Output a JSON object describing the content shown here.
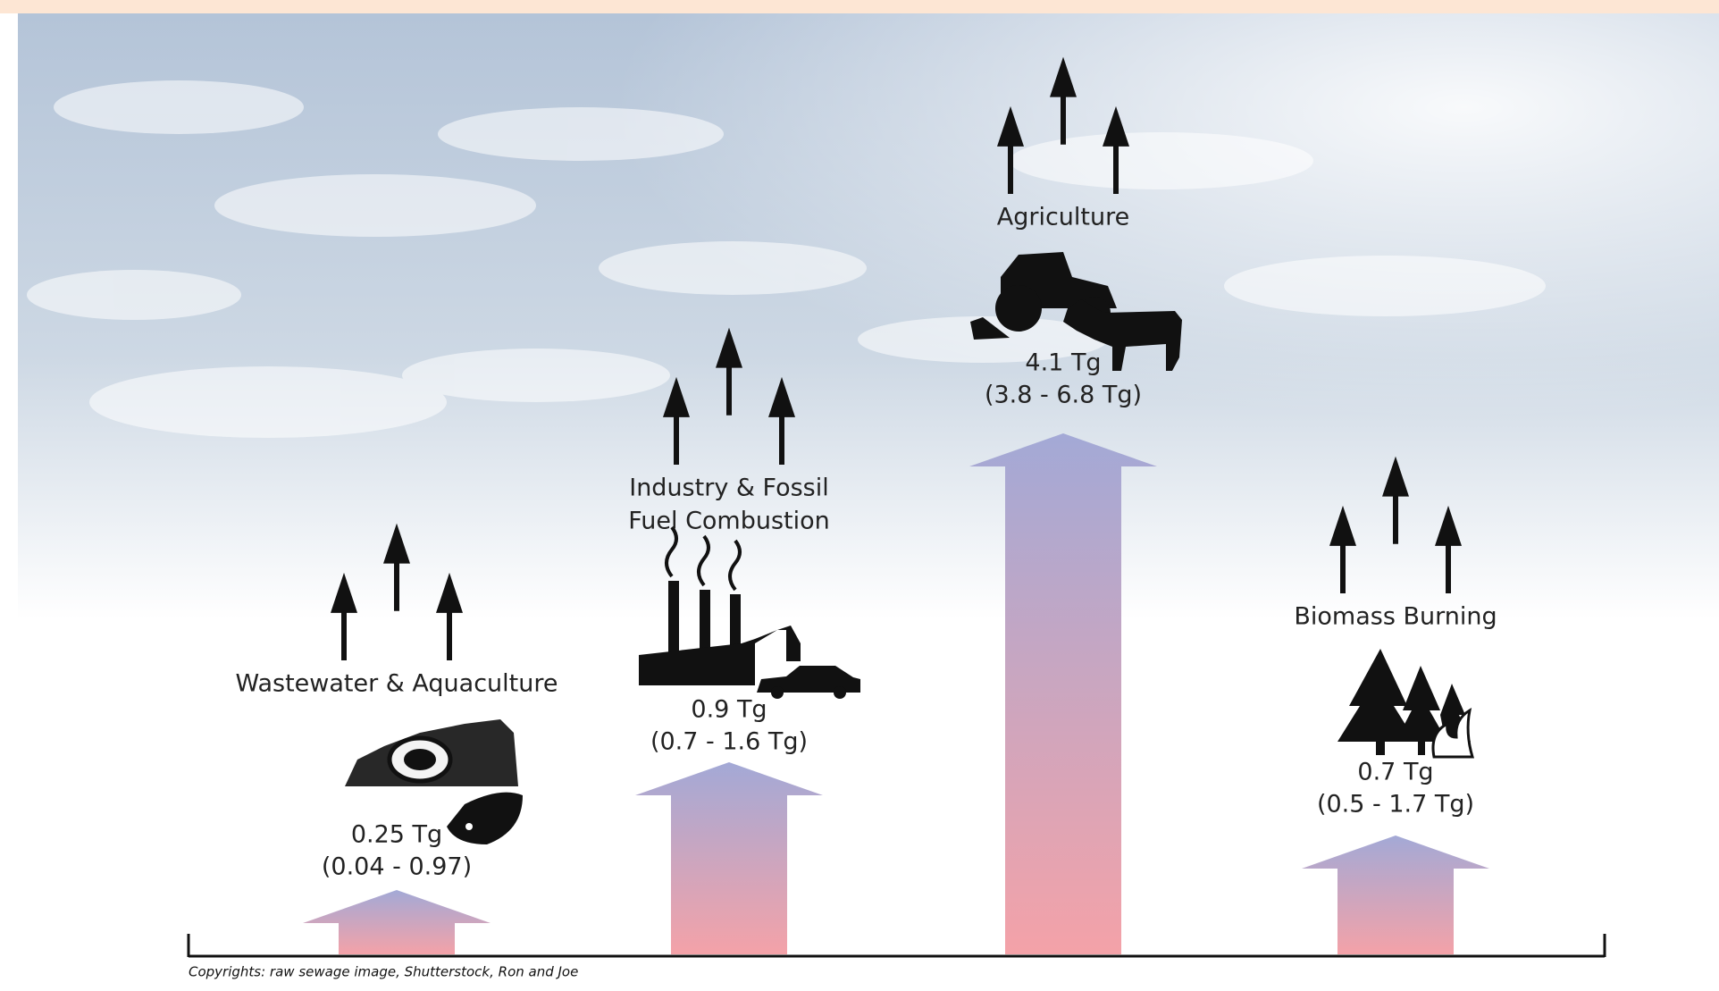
{
  "sources": [
    {
      "label": [
        "Wastewater & Aquaculture"
      ],
      "value": "0.25 Tg",
      "range": "(0.04 - 0.97)"
    },
    {
      "label": [
        "Industry & Fossil",
        "Fuel Combustion"
      ],
      "value": "0.9 Tg",
      "range": "(0.7 - 1.6 Tg)"
    },
    {
      "label": [
        "Agriculture"
      ],
      "value": "4.1 Tg",
      "range": "(3.8 - 6.8 Tg)"
    },
    {
      "label": [
        "Biomass Burning"
      ],
      "value": "0.7 Tg",
      "range": "(0.5 - 1.7 Tg)"
    }
  ],
  "copyright": "Copyrights: raw sewage image, Shutterstock, Ron and Joe"
}
